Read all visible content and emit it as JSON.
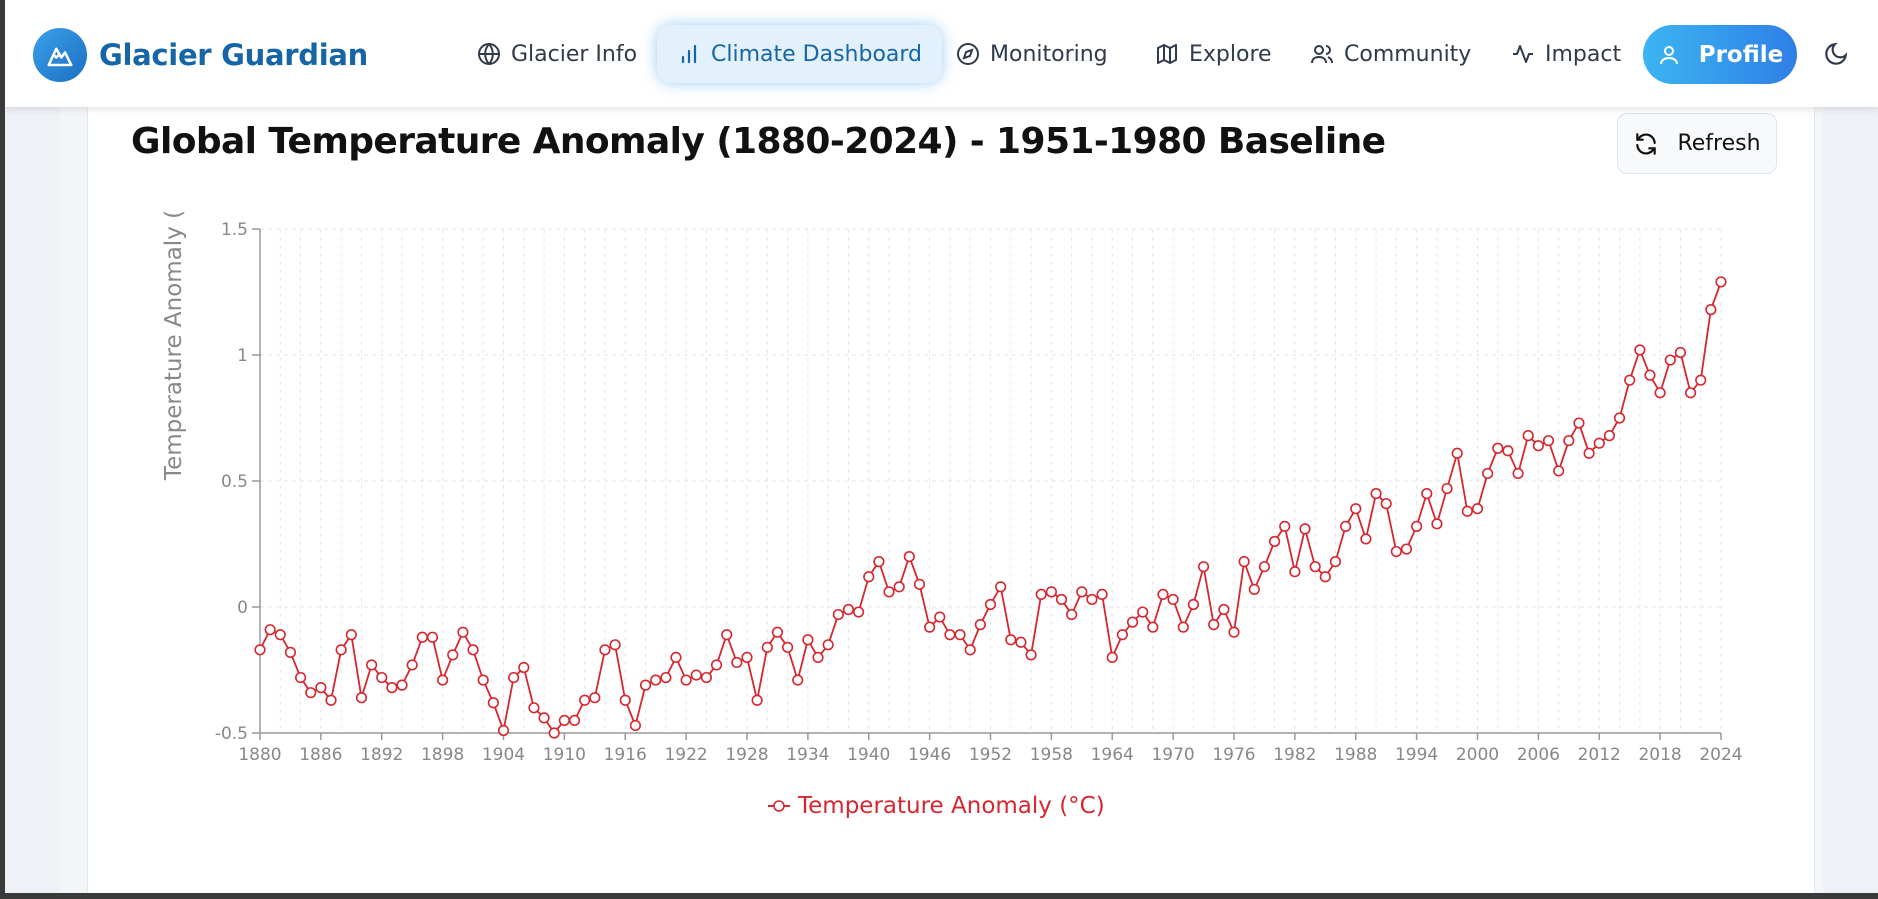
{
  "nav": {
    "brand": "Glacier Guardian",
    "items": [
      {
        "label": "Glacier Info",
        "icon": "globe-icon"
      },
      {
        "label": "Climate Dashboard",
        "icon": "bar-chart-icon",
        "active": true
      },
      {
        "label": "Monitoring",
        "icon": "compass-icon"
      },
      {
        "label": "Explore",
        "icon": "map-icon"
      },
      {
        "label": "Community",
        "icon": "users-icon"
      },
      {
        "label": "Impact",
        "icon": "activity-icon"
      }
    ],
    "profile_label": "Profile",
    "theme_toggle_icon": "moon-icon"
  },
  "card": {
    "refresh_label": "Refresh"
  },
  "colors": {
    "brand": "#1565a7",
    "series": "#d7262f",
    "grid": "#e6e6e6",
    "axis_text": "#888888"
  },
  "chart_data": {
    "type": "line",
    "title": "Global Temperature Anomaly (1880-2024) - 1951-1980 Baseline",
    "xlabel": "",
    "ylabel": "Temperature Anomaly (",
    "ylim": [
      -0.5,
      1.5
    ],
    "yticks": [
      -0.5,
      0,
      0.5,
      1,
      1.5
    ],
    "ytick_labels": [
      "-0.5",
      "0",
      "0.5",
      "1",
      "1.5"
    ],
    "xlim": [
      1880,
      2024
    ],
    "xticks": [
      1880,
      1886,
      1892,
      1898,
      1904,
      1910,
      1916,
      1922,
      1928,
      1934,
      1940,
      1946,
      1952,
      1958,
      1964,
      1970,
      1976,
      1982,
      1988,
      1994,
      2000,
      2006,
      2012,
      2018,
      2024
    ],
    "grid": true,
    "legend_position": "bottom",
    "series": [
      {
        "name": "Temperature Anomaly (°C)",
        "x_start": 1880,
        "values": [
          -0.17,
          -0.09,
          -0.11,
          -0.18,
          -0.28,
          -0.34,
          -0.32,
          -0.37,
          -0.17,
          -0.11,
          -0.36,
          -0.23,
          -0.28,
          -0.32,
          -0.31,
          -0.23,
          -0.12,
          -0.12,
          -0.29,
          -0.19,
          -0.1,
          -0.17,
          -0.29,
          -0.38,
          -0.49,
          -0.28,
          -0.24,
          -0.4,
          -0.44,
          -0.5,
          -0.45,
          -0.45,
          -0.37,
          -0.36,
          -0.17,
          -0.15,
          -0.37,
          -0.47,
          -0.31,
          -0.29,
          -0.28,
          -0.2,
          -0.29,
          -0.27,
          -0.28,
          -0.23,
          -0.11,
          -0.22,
          -0.2,
          -0.37,
          -0.16,
          -0.1,
          -0.16,
          -0.29,
          -0.13,
          -0.2,
          -0.15,
          -0.03,
          -0.01,
          -0.02,
          0.12,
          0.18,
          0.06,
          0.08,
          0.2,
          0.09,
          -0.08,
          -0.04,
          -0.11,
          -0.11,
          -0.17,
          -0.07,
          0.01,
          0.08,
          -0.13,
          -0.14,
          -0.19,
          0.05,
          0.06,
          0.03,
          -0.03,
          0.06,
          0.03,
          0.05,
          -0.2,
          -0.11,
          -0.06,
          -0.02,
          -0.08,
          0.05,
          0.03,
          -0.08,
          0.01,
          0.16,
          -0.07,
          -0.01,
          -0.1,
          0.18,
          0.07,
          0.16,
          0.26,
          0.32,
          0.14,
          0.31,
          0.16,
          0.12,
          0.18,
          0.32,
          0.39,
          0.27,
          0.45,
          0.41,
          0.22,
          0.23,
          0.32,
          0.45,
          0.33,
          0.47,
          0.61,
          0.38,
          0.39,
          0.53,
          0.63,
          0.62,
          0.53,
          0.68,
          0.64,
          0.66,
          0.54,
          0.66,
          0.73,
          0.61,
          0.65,
          0.68,
          0.75,
          0.9,
          1.02,
          0.92,
          0.85,
          0.98,
          1.01,
          0.85,
          0.9,
          1.18,
          1.29
        ]
      }
    ]
  }
}
